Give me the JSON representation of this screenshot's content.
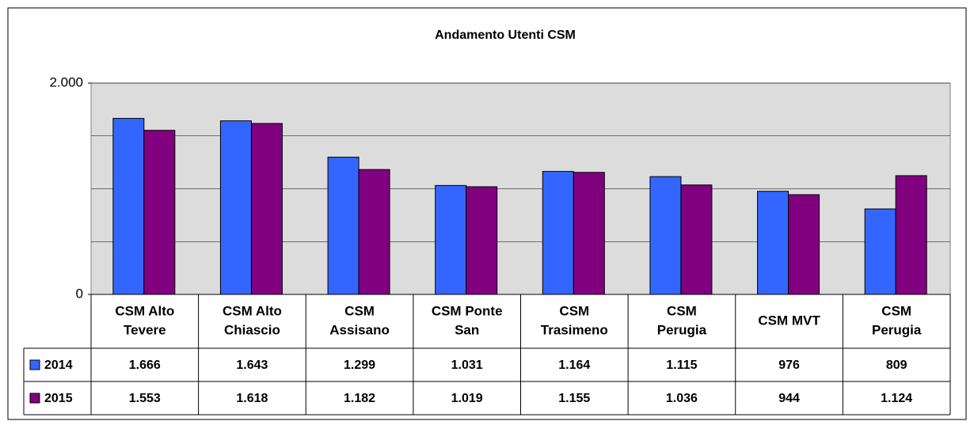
{
  "chart_data": {
    "type": "bar",
    "title": "Andamento Utenti CSM",
    "categories": [
      [
        "CSM Alto",
        "Tevere"
      ],
      [
        "CSM Alto",
        "Chiascio"
      ],
      [
        "CSM",
        "Assisano"
      ],
      [
        "CSM Ponte",
        "San"
      ],
      [
        "CSM",
        "Trasimeno"
      ],
      [
        "CSM",
        "Perugia"
      ],
      [
        "CSM MVT"
      ],
      [
        "CSM",
        "Perugia"
      ]
    ],
    "series": [
      {
        "name": "2014",
        "color": "#3366ff",
        "values": [
          1666,
          1643,
          1299,
          1031,
          1164,
          1115,
          976,
          809
        ],
        "value_labels": [
          "1.666",
          "1.643",
          "1.299",
          "1.031",
          "1.164",
          "1.115",
          "976",
          "809"
        ]
      },
      {
        "name": "2015",
        "color": "#800080",
        "values": [
          1553,
          1618,
          1182,
          1019,
          1155,
          1036,
          944,
          1124
        ],
        "value_labels": [
          "1.553",
          "1.618",
          "1.182",
          "1.019",
          "1.155",
          "1.036",
          "944",
          "1.124"
        ]
      }
    ],
    "ylim": [
      0,
      2000
    ],
    "yticks": [
      0,
      {
        "value": 2000,
        "label": "2.000"
      }
    ],
    "grid_lines": [
      500,
      1000,
      1500,
      2000
    ],
    "grid": true,
    "data_table": true
  }
}
